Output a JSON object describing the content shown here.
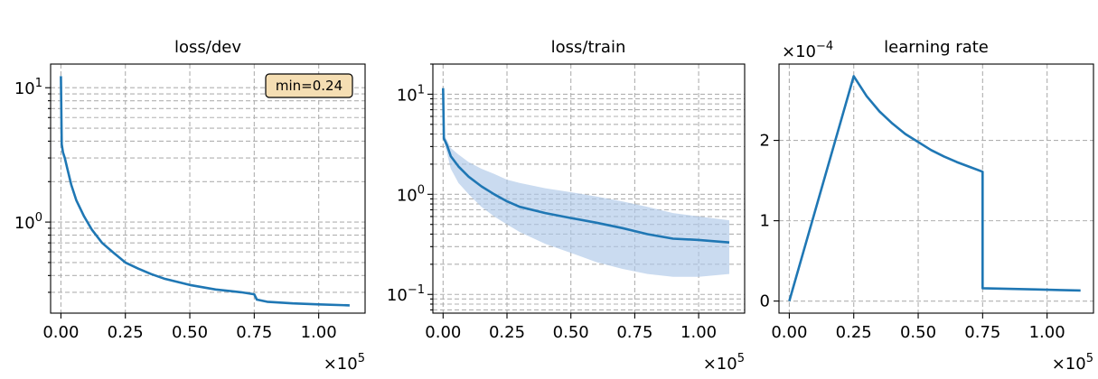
{
  "colors": {
    "line": "#1f77b4",
    "band": "#aec7e8",
    "grid": "#b0b0b0",
    "annotation_bg": "#f5deb3"
  },
  "chart_data": [
    {
      "type": "line",
      "title": "loss/dev",
      "xlabel": "",
      "ylabel": "",
      "yscale": "log",
      "xlim": [
        -4000,
        118000
      ],
      "ylim": [
        0.21,
        15
      ],
      "x_multiplier": "×10^5",
      "x_ticks": [
        0,
        25000,
        50000,
        75000,
        100000
      ],
      "x_tick_labels": [
        "0.00",
        "0.25",
        "0.50",
        "0.75",
        "1.00"
      ],
      "y_major_ticks": [
        1,
        10
      ],
      "y_tick_labels": [
        "10^0",
        "10^1"
      ],
      "grid": true,
      "annotation": "min=0.24",
      "series": [
        {
          "x": [
            0,
            300,
            800,
            1500,
            2500,
            4000,
            6000,
            9000,
            12000,
            16000,
            20000,
            25000,
            30000,
            35000,
            40000,
            50000,
            60000,
            70000,
            75000,
            76000,
            80000,
            90000,
            100000,
            112000
          ],
          "y": [
            12.2,
            3.8,
            3.3,
            3.0,
            2.5,
            1.9,
            1.45,
            1.1,
            0.88,
            0.7,
            0.6,
            0.5,
            0.45,
            0.41,
            0.38,
            0.34,
            0.315,
            0.3,
            0.29,
            0.265,
            0.255,
            0.248,
            0.244,
            0.24
          ]
        }
      ]
    },
    {
      "type": "line",
      "title": "loss/train",
      "xlabel": "",
      "ylabel": "",
      "yscale": "log",
      "xlim": [
        -4000,
        118000
      ],
      "ylim": [
        0.065,
        20
      ],
      "x_multiplier": "×10^5",
      "x_ticks": [
        0,
        25000,
        50000,
        75000,
        100000
      ],
      "x_tick_labels": [
        "0.00",
        "0.25",
        "0.50",
        "0.75",
        "1.00"
      ],
      "y_major_ticks": [
        0.1,
        1,
        10
      ],
      "y_tick_labels": [
        "10^-1",
        "10^0",
        "10^1"
      ],
      "grid": true,
      "series": [
        {
          "x": [
            0,
            300,
            800,
            1500,
            3000,
            6000,
            10000,
            15000,
            20000,
            25000,
            30000,
            40000,
            50000,
            60000,
            70000,
            80000,
            90000,
            100000,
            112000
          ],
          "y": [
            11.5,
            3.6,
            3.4,
            3.1,
            2.4,
            1.9,
            1.5,
            1.2,
            1.0,
            0.85,
            0.75,
            0.65,
            0.58,
            0.52,
            0.46,
            0.4,
            0.36,
            0.35,
            0.33
          ],
          "band_low": [
            11.5,
            3.4,
            3.0,
            2.6,
            1.8,
            1.3,
            1.0,
            0.75,
            0.6,
            0.5,
            0.42,
            0.32,
            0.26,
            0.21,
            0.18,
            0.16,
            0.15,
            0.15,
            0.16
          ],
          "band_high": [
            11.5,
            3.8,
            3.7,
            3.5,
            2.9,
            2.5,
            2.1,
            1.8,
            1.6,
            1.4,
            1.3,
            1.15,
            1.05,
            0.95,
            0.85,
            0.75,
            0.65,
            0.6,
            0.55
          ]
        }
      ]
    },
    {
      "type": "line",
      "title": "learning rate",
      "xlabel": "",
      "ylabel": "",
      "xlim": [
        -4000,
        118000
      ],
      "ylim": [
        -0.15,
        2.95
      ],
      "y_multiplier": "×10^−4",
      "x_multiplier": "×10^5",
      "x_ticks": [
        0,
        25000,
        50000,
        75000,
        100000
      ],
      "x_tick_labels": [
        "0.00",
        "0.25",
        "0.50",
        "0.75",
        "1.00"
      ],
      "y_ticks": [
        0,
        1,
        2
      ],
      "y_tick_labels": [
        "0",
        "1",
        "2"
      ],
      "grid": true,
      "series": [
        {
          "x": [
            0,
            25000,
            30000,
            35000,
            40000,
            45000,
            50000,
            55000,
            60000,
            65000,
            70000,
            75000,
            75001,
            85000,
            95000,
            105000,
            113000
          ],
          "y": [
            0,
            2.8,
            2.55,
            2.36,
            2.21,
            2.08,
            1.98,
            1.88,
            1.8,
            1.73,
            1.67,
            1.61,
            0.16,
            0.152,
            0.145,
            0.138,
            0.132
          ]
        }
      ]
    }
  ]
}
